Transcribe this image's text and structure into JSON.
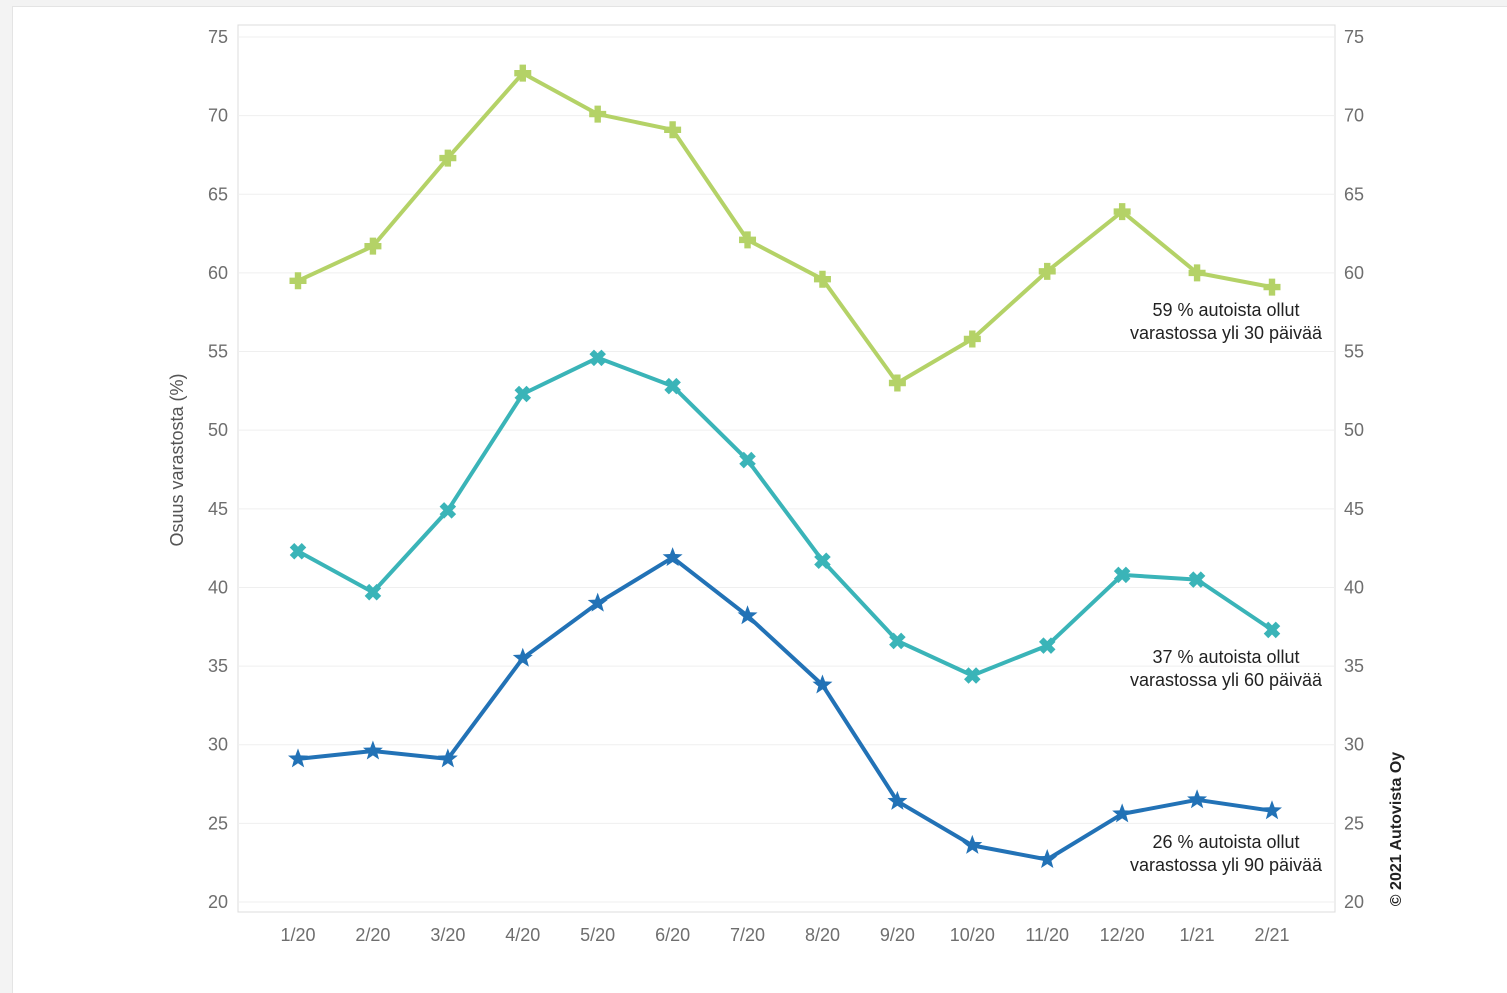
{
  "chart_data": {
    "type": "line",
    "x": [
      "1/20",
      "2/20",
      "3/20",
      "4/20",
      "5/20",
      "6/20",
      "7/20",
      "8/20",
      "9/20",
      "10/20",
      "11/20",
      "12/20",
      "1/21",
      "2/21"
    ],
    "ylabel": "Osuus varastosta (%)",
    "ylim": [
      20,
      75
    ],
    "yticks": [
      20,
      25,
      30,
      35,
      40,
      45,
      50,
      55,
      60,
      65,
      70,
      75
    ],
    "grid": true,
    "dual_axis": true,
    "series": [
      {
        "key": "over30",
        "marker": "plus",
        "color": "#b4d267",
        "values": [
          59.5,
          61.7,
          67.3,
          72.7,
          70.1,
          69.1,
          62.1,
          59.6,
          53.0,
          55.8,
          60.1,
          63.9,
          60.0,
          59.1
        ],
        "annotation": [
          "59 % autoista ollut",
          "varastossa yli 30 päivää"
        ]
      },
      {
        "key": "over60",
        "marker": "cross",
        "color": "#3ab4b8",
        "values": [
          42.3,
          39.7,
          44.9,
          52.3,
          54.6,
          52.8,
          48.1,
          41.7,
          36.6,
          34.4,
          36.3,
          40.8,
          40.5,
          37.3
        ],
        "annotation": [
          "37 % autoista ollut",
          "varastossa yli 60 päivää"
        ]
      },
      {
        "key": "over90",
        "marker": "star",
        "color": "#2272b6",
        "values": [
          29.1,
          29.6,
          29.1,
          35.5,
          39.0,
          41.9,
          38.2,
          33.8,
          26.4,
          23.6,
          22.7,
          25.6,
          26.5,
          25.8
        ],
        "annotation": [
          "26 % autoista ollut",
          "varastossa yli 90 päivää"
        ]
      }
    ],
    "credit": "© 2021 Autovista Oy"
  }
}
